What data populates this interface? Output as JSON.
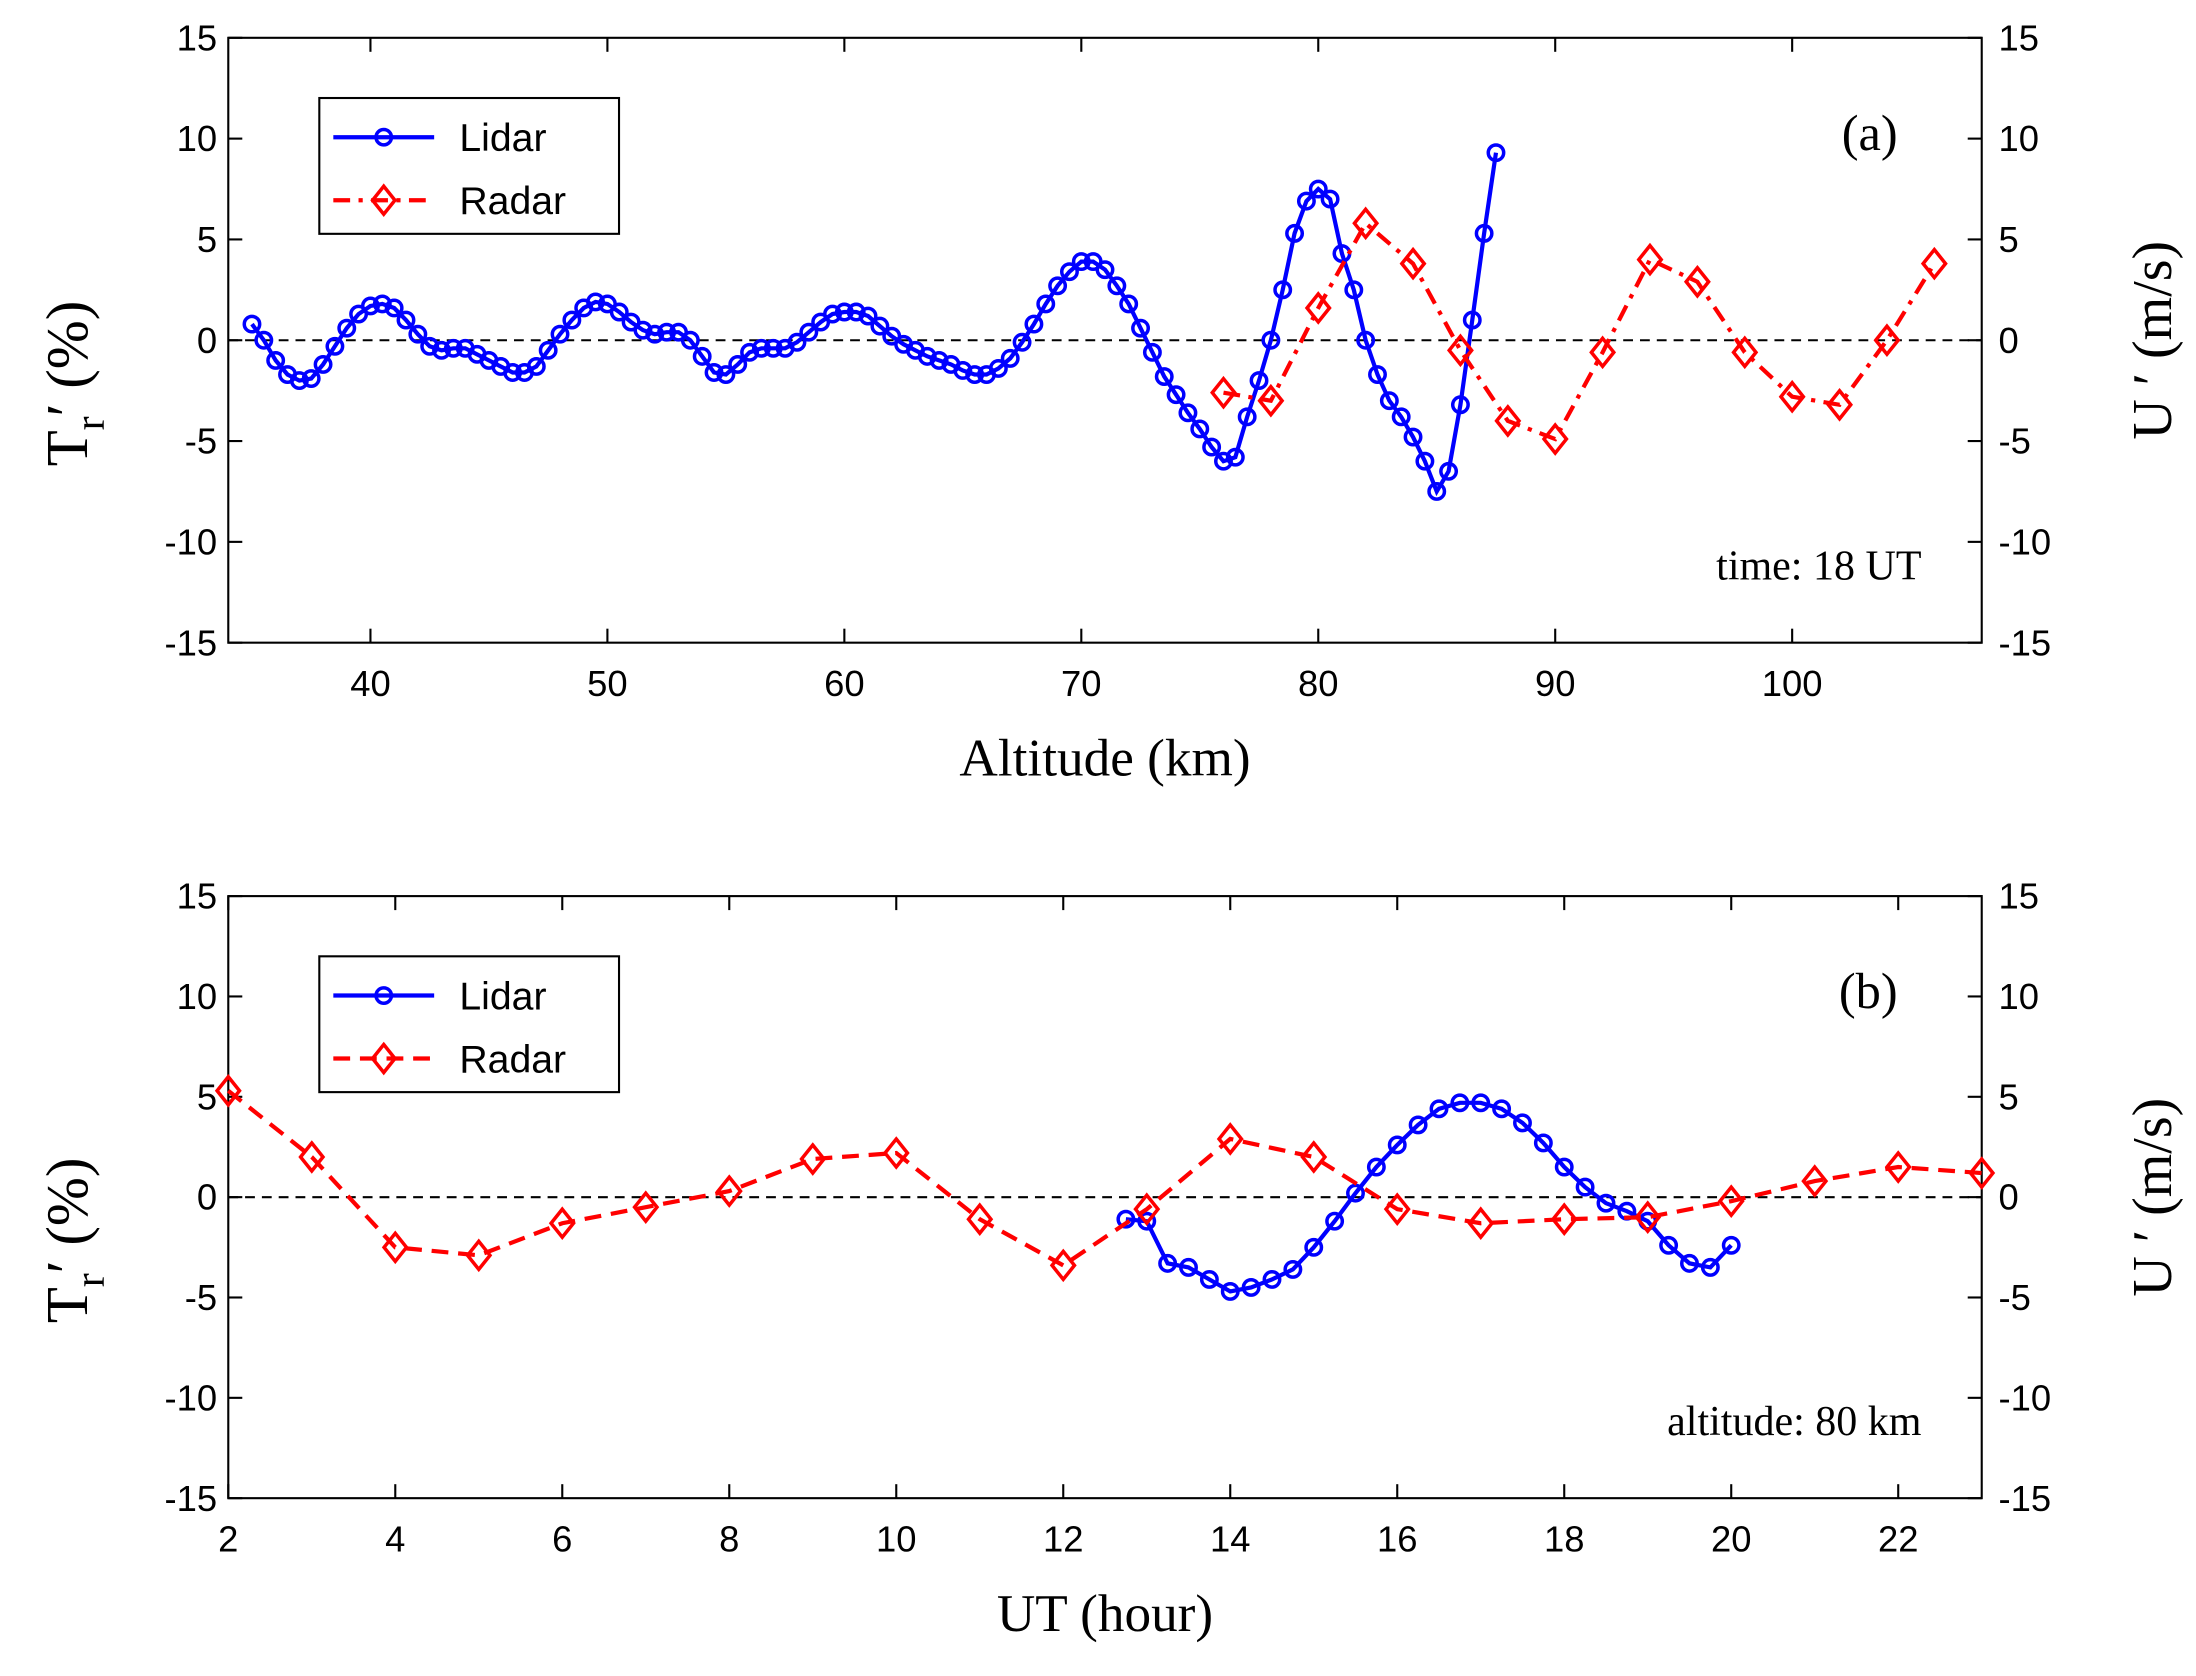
{
  "chart_data": [
    {
      "type": "line",
      "ylabel": [
        "T",
        "r",
        "′  (%)"
      ],
      "y2label": "U ′  (m/s)",
      "xlabel": "Altitude  (km)",
      "annotations": [
        "(a)",
        "time: 18 UT"
      ],
      "legend": "upper left",
      "reference_line": 0,
      "xlim": [
        34,
        108
      ],
      "xticks": [
        40,
        50,
        60,
        70,
        80,
        90,
        100
      ],
      "ylim": [
        -15,
        15
      ],
      "yticks": [
        -15,
        -10,
        -5,
        0,
        5,
        10,
        15
      ],
      "y2lim": [
        -15,
        15
      ],
      "y2ticks": [
        -15,
        -10,
        -5,
        0,
        5,
        10,
        15
      ],
      "series": [
        {
          "name": "Lidar",
          "color": "#0000ff",
          "linestyle": "solid",
          "marker": "circle",
          "x": [
            35,
            35.5,
            36,
            36.5,
            37,
            37.5,
            38,
            38.5,
            39,
            39.5,
            40,
            40.5,
            41,
            41.5,
            42,
            42.5,
            43,
            43.5,
            44,
            44.5,
            45,
            45.5,
            46,
            46.5,
            47,
            47.5,
            48,
            48.5,
            49,
            49.5,
            50,
            50.5,
            51,
            51.5,
            52,
            52.5,
            53,
            53.5,
            54,
            54.5,
            55,
            55.5,
            56,
            56.5,
            57,
            57.5,
            58,
            58.5,
            59,
            59.5,
            60,
            60.5,
            61,
            61.5,
            62,
            62.5,
            63,
            63.5,
            64,
            64.5,
            65,
            65.5,
            66,
            66.5,
            67,
            67.5,
            68,
            68.5,
            69,
            69.5,
            70,
            70.5,
            71,
            71.5,
            72,
            72.5,
            73,
            73.5,
            74,
            74.5,
            75,
            75.5,
            76,
            76.5,
            77,
            77.5,
            78,
            78.5,
            79,
            79.5,
            80,
            80.5,
            81,
            81.5,
            82,
            82.5,
            83,
            83.5,
            84,
            84.5,
            85,
            85.5,
            86,
            86.5,
            87,
            87.5
          ],
          "values": [
            0.8,
            0,
            -1,
            -1.7,
            -2,
            -1.9,
            -1.2,
            -0.3,
            0.6,
            1.3,
            1.7,
            1.8,
            1.6,
            1,
            0.3,
            -0.3,
            -0.5,
            -0.4,
            -0.4,
            -0.7,
            -1,
            -1.3,
            -1.6,
            -1.6,
            -1.3,
            -0.5,
            0.3,
            1,
            1.6,
            1.9,
            1.8,
            1.4,
            0.9,
            0.5,
            0.3,
            0.4,
            0.4,
            0,
            -0.8,
            -1.6,
            -1.7,
            -1.2,
            -0.6,
            -0.4,
            -0.4,
            -0.4,
            -0.1,
            0.4,
            0.9,
            1.3,
            1.4,
            1.4,
            1.2,
            0.7,
            0.2,
            -0.2,
            -0.5,
            -0.8,
            -1,
            -1.2,
            -1.5,
            -1.7,
            -1.7,
            -1.4,
            -0.9,
            -0.1,
            0.8,
            1.8,
            2.7,
            3.4,
            3.9,
            3.9,
            3.5,
            2.7,
            1.8,
            0.6,
            -0.6,
            -1.8,
            -2.7,
            -3.6,
            -4.4,
            -5.3,
            -6,
            -5.8,
            -3.8,
            -2,
            0,
            2.5,
            5.3,
            6.9,
            7.5,
            7,
            4.3,
            2.5,
            0,
            -1.7,
            -3,
            -3.8,
            -4.8,
            -6,
            -7.5,
            -6.5,
            -3.2,
            1,
            5.3,
            9.3
          ]
        },
        {
          "name": "Radar",
          "color": "#ff0000",
          "linestyle": "dashdot",
          "marker": "diamond",
          "axis": "y2",
          "x": [
            76,
            78,
            80,
            82,
            84,
            86,
            88,
            90,
            92,
            94,
            96,
            98,
            100,
            102,
            104,
            106
          ],
          "values": [
            -2.6,
            -3,
            1.6,
            5.8,
            3.8,
            -0.5,
            -4,
            -4.9,
            -0.6,
            4,
            2.9,
            -0.6,
            -2.8,
            -3.2,
            0,
            3.8
          ]
        }
      ]
    },
    {
      "type": "line",
      "ylabel": [
        "T",
        "r",
        "′  (%)"
      ],
      "y2label": "U ′  (m/s)",
      "xlabel": "UT   (hour)",
      "annotations": [
        "(b)",
        "altitude: 80 km"
      ],
      "legend": "upper left",
      "reference_line": 0,
      "xlim": [
        2,
        23
      ],
      "xticks": [
        2,
        4,
        6,
        8,
        10,
        12,
        14,
        16,
        18,
        20,
        22
      ],
      "ylim": [
        -15,
        15
      ],
      "yticks": [
        -15,
        -10,
        -5,
        0,
        5,
        10,
        15
      ],
      "y2lim": [
        -15,
        15
      ],
      "y2ticks": [
        -15,
        -10,
        -5,
        0,
        5,
        10,
        15
      ],
      "series": [
        {
          "name": "Lidar",
          "color": "#0000ff",
          "linestyle": "solid",
          "marker": "circle",
          "x": [
            12.75,
            13,
            13.25,
            13.5,
            13.75,
            14,
            14.25,
            14.5,
            14.75,
            15,
            15.25,
            15.5,
            15.75,
            16,
            16.25,
            16.5,
            16.75,
            17,
            17.25,
            17.5,
            17.75,
            18,
            18.25,
            18.5,
            18.75,
            19,
            19.25,
            19.5,
            19.75,
            20
          ],
          "values": [
            -1.1,
            -1.2,
            -3.3,
            -3.5,
            -4.1,
            -4.7,
            -4.5,
            -4.1,
            -3.6,
            -2.5,
            -1.2,
            0.2,
            1.5,
            2.6,
            3.6,
            4.4,
            4.7,
            4.7,
            4.4,
            3.7,
            2.7,
            1.5,
            0.5,
            -0.3,
            -0.7,
            -1.2,
            -2.4,
            -3.3,
            -3.5,
            -2.4
          ]
        },
        {
          "name": "Radar",
          "color": "#ff0000",
          "linestyle": "dashed",
          "marker": "diamond",
          "axis": "y2",
          "x": [
            2,
            3,
            4,
            5,
            6,
            7,
            8,
            9,
            10,
            11,
            12,
            13,
            14,
            15,
            16,
            17,
            18,
            19,
            20,
            21,
            22,
            23
          ],
          "values": [
            5.3,
            2,
            -2.5,
            -2.9,
            -1.3,
            -0.5,
            0.3,
            1.9,
            2.2,
            -1.1,
            -3.4,
            -0.6,
            2.9,
            2,
            -0.6,
            -1.3,
            -1.1,
            -1,
            -0.2,
            0.8,
            1.5,
            1.2
          ]
        }
      ]
    }
  ]
}
